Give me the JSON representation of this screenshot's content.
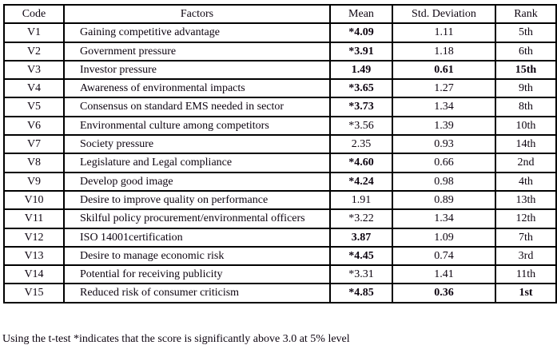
{
  "table": {
    "headers": [
      "Code",
      "Factors",
      "Mean",
      "Std. Deviation",
      "Rank"
    ],
    "rows": [
      {
        "code": "V1",
        "factor": "Gaining competitive advantage",
        "mean": "*4.09",
        "mean_bold": true,
        "std": "1.11",
        "std_bold": false,
        "rank": "5th",
        "rank_bold": false
      },
      {
        "code": "V2",
        "factor": "Government pressure",
        "mean": "*3.91",
        "mean_bold": true,
        "std": "1.18",
        "std_bold": false,
        "rank": "6th",
        "rank_bold": false
      },
      {
        "code": "V3",
        "factor": "Investor pressure",
        "mean": "1.49",
        "mean_bold": true,
        "std": "0.61",
        "std_bold": true,
        "rank": "15th",
        "rank_bold": true
      },
      {
        "code": "V4",
        "factor": "Awareness of environmental impacts",
        "mean": "*3.65",
        "mean_bold": true,
        "std": "1.27",
        "std_bold": false,
        "rank": "9th",
        "rank_bold": false
      },
      {
        "code": "V5",
        "factor": "Consensus on standard EMS needed in sector",
        "mean": "*3.73",
        "mean_bold": true,
        "std": "1.34",
        "std_bold": false,
        "rank": "8th",
        "rank_bold": false
      },
      {
        "code": "V6",
        "factor": "Environmental culture among competitors",
        "mean": "*3.56",
        "mean_bold": false,
        "std": "1.39",
        "std_bold": false,
        "rank": "10th",
        "rank_bold": false
      },
      {
        "code": "V7",
        "factor": "Society pressure",
        "mean": "2.35",
        "mean_bold": false,
        "std": "0.93",
        "std_bold": false,
        "rank": "14th",
        "rank_bold": false
      },
      {
        "code": "V8",
        "factor": "Legislature and Legal compliance",
        "mean": "*4.60",
        "mean_bold": true,
        "std": "0.66",
        "std_bold": false,
        "rank": "2nd",
        "rank_bold": false
      },
      {
        "code": "V9",
        "factor": "Develop good image",
        "mean": "*4.24",
        "mean_bold": true,
        "std": "0.98",
        "std_bold": false,
        "rank": "4th",
        "rank_bold": false
      },
      {
        "code": "V10",
        "factor": "Desire to improve quality on performance",
        "mean": "1.91",
        "mean_bold": false,
        "std": "0.89",
        "std_bold": false,
        "rank": "13th",
        "rank_bold": false
      },
      {
        "code": "V11",
        "factor": "Skilful policy procurement/environmental officers",
        "mean": "*3.22",
        "mean_bold": false,
        "std": "1.34",
        "std_bold": false,
        "rank": "12th",
        "rank_bold": false
      },
      {
        "code": "V12",
        "factor": "ISO 14001certification",
        "mean": "3.87",
        "mean_bold": true,
        "std": "1.09",
        "std_bold": false,
        "rank": "7th",
        "rank_bold": false
      },
      {
        "code": "V13",
        "factor": "Desire to manage economic risk",
        "mean": "*4.45",
        "mean_bold": true,
        "std": "0.74",
        "std_bold": false,
        "rank": "3rd",
        "rank_bold": false
      },
      {
        "code": "V14",
        "factor": "Potential for receiving publicity",
        "mean": "*3.31",
        "mean_bold": false,
        "std": "1.41",
        "std_bold": false,
        "rank": "11th",
        "rank_bold": false
      },
      {
        "code": "V15",
        "factor": "Reduced risk of consumer criticism",
        "mean": "*4.85",
        "mean_bold": true,
        "std": "0.36",
        "std_bold": true,
        "rank": "1st",
        "rank_bold": true
      }
    ]
  },
  "footnote": "Using the t-test *indicates that the score is significantly above 3.0 at 5% level",
  "colors": {
    "text": "#0d0410",
    "border": "#000000",
    "background": "#ffffff"
  }
}
